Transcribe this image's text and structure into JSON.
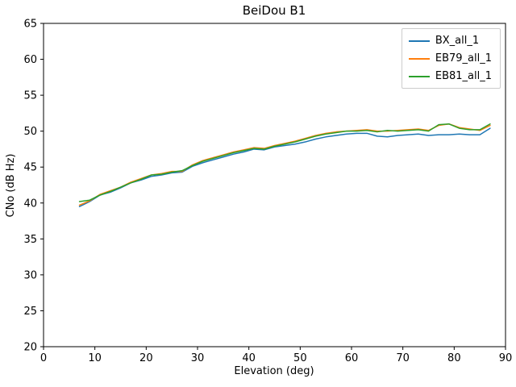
{
  "chart_data": {
    "type": "line",
    "title": "BeiDou B1",
    "xlabel": "Elevation (deg)",
    "ylabel": "CNo (dB Hz)",
    "xlim": [
      0,
      90
    ],
    "ylim": [
      20,
      65
    ],
    "xticks": [
      0,
      10,
      20,
      30,
      40,
      50,
      60,
      70,
      80,
      90
    ],
    "yticks": [
      20,
      25,
      30,
      35,
      40,
      45,
      50,
      55,
      60,
      65
    ],
    "grid": false,
    "legend_position": "upper right",
    "x": [
      7,
      9,
      11,
      13,
      15,
      17,
      19,
      21,
      23,
      25,
      27,
      29,
      31,
      33,
      35,
      37,
      39,
      41,
      43,
      45,
      47,
      49,
      51,
      53,
      55,
      57,
      59,
      61,
      63,
      65,
      67,
      69,
      71,
      73,
      75,
      77,
      79,
      81,
      83,
      85,
      87
    ],
    "series": [
      {
        "name": "BX_all_1",
        "color": "#1f77b4",
        "values": [
          39.5,
          40.2,
          41.1,
          41.5,
          42.1,
          42.8,
          43.2,
          43.7,
          43.9,
          44.2,
          44.3,
          45.1,
          45.6,
          46.0,
          46.4,
          46.8,
          47.1,
          47.5,
          47.4,
          47.8,
          48.0,
          48.2,
          48.5,
          48.9,
          49.2,
          49.4,
          49.6,
          49.7,
          49.7,
          49.3,
          49.2,
          49.4,
          49.5,
          49.6,
          49.4,
          49.5,
          49.5,
          49.6,
          49.5,
          49.5,
          50.4
        ]
      },
      {
        "name": "EB79_all_1",
        "color": "#ff7f0e",
        "values": [
          39.7,
          40.3,
          41.2,
          41.7,
          42.2,
          42.9,
          43.4,
          43.9,
          44.1,
          44.4,
          44.4,
          45.3,
          45.9,
          46.3,
          46.7,
          47.1,
          47.4,
          47.7,
          47.6,
          48.0,
          48.3,
          48.6,
          49.0,
          49.4,
          49.7,
          49.9,
          50.0,
          50.1,
          50.2,
          50.0,
          50.0,
          50.1,
          50.2,
          50.3,
          50.1,
          50.8,
          51.0,
          50.5,
          50.3,
          50.1,
          50.8
        ]
      },
      {
        "name": "EB81_all_1",
        "color": "#2ca02c",
        "values": [
          40.2,
          40.4,
          41.1,
          41.6,
          42.2,
          42.8,
          43.3,
          43.9,
          44.0,
          44.3,
          44.5,
          45.2,
          45.8,
          46.2,
          46.6,
          47.0,
          47.3,
          47.6,
          47.5,
          47.9,
          48.2,
          48.5,
          48.9,
          49.3,
          49.6,
          49.8,
          50.0,
          50.0,
          50.1,
          49.9,
          50.1,
          50.0,
          50.1,
          50.2,
          50.0,
          50.9,
          51.0,
          50.4,
          50.2,
          50.2,
          51.0
        ]
      }
    ]
  }
}
